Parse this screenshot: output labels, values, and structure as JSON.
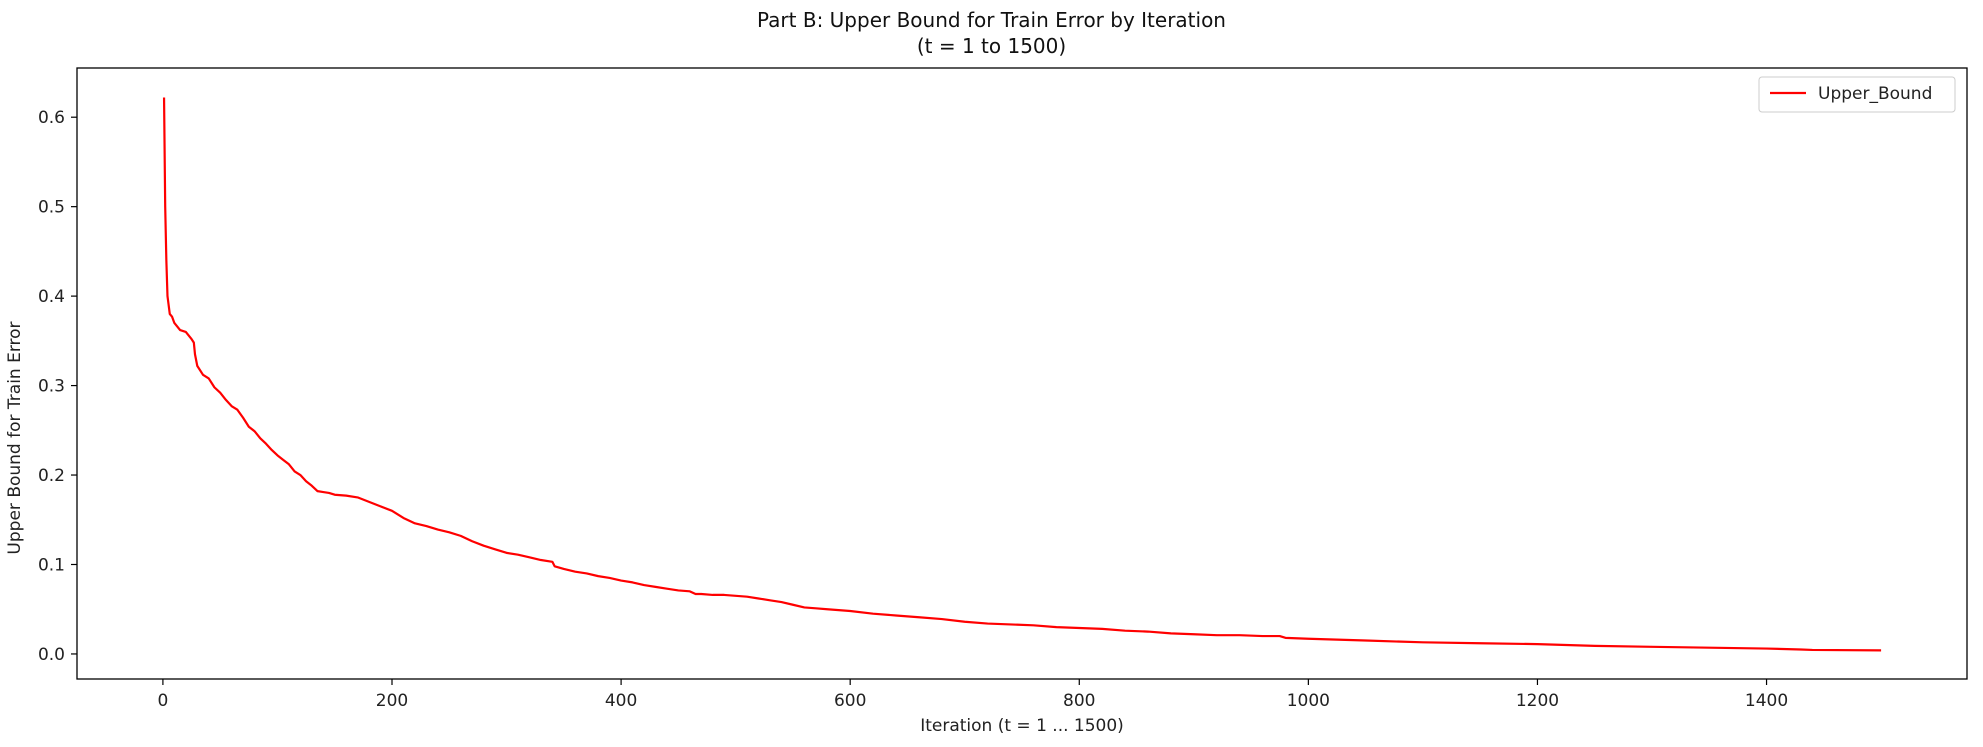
{
  "chart_data": {
    "type": "line",
    "title": "Part B: Upper Bound for Train Error by Iteration",
    "subtitle": "(t = 1 to 1500)",
    "xlabel": "Iteration (t = 1 ... 1500)",
    "ylabel": "Upper Bound for Train Error",
    "xlim": [
      -75,
      1575
    ],
    "ylim": [
      -0.028,
      0.655
    ],
    "xticks": [
      0,
      200,
      400,
      600,
      800,
      1000,
      1200,
      1400
    ],
    "xtick_labels": [
      "0",
      "200",
      "400",
      "600",
      "800",
      "1000",
      "1200",
      "1400"
    ],
    "yticks": [
      0.0,
      0.1,
      0.2,
      0.3,
      0.4,
      0.5,
      0.6
    ],
    "ytick_labels": [
      "0.0",
      "0.1",
      "0.2",
      "0.3",
      "0.4",
      "0.5",
      "0.6"
    ],
    "grid": false,
    "legend_position": "top-right",
    "series": [
      {
        "name": "Upper_Bound",
        "color": "#ff0000",
        "x": [
          1,
          2,
          3,
          4,
          6,
          8,
          10,
          15,
          20,
          25,
          27,
          28,
          30,
          35,
          40,
          45,
          50,
          55,
          60,
          65,
          70,
          75,
          80,
          85,
          90,
          95,
          100,
          105,
          110,
          115,
          120,
          125,
          130,
          135,
          140,
          145,
          150,
          160,
          170,
          180,
          190,
          200,
          210,
          220,
          230,
          240,
          250,
          260,
          270,
          280,
          290,
          300,
          310,
          320,
          330,
          340,
          342,
          350,
          360,
          370,
          380,
          390,
          400,
          410,
          420,
          430,
          440,
          450,
          460,
          465,
          470,
          480,
          490,
          500,
          510,
          520,
          530,
          540,
          550,
          560,
          570,
          580,
          600,
          620,
          640,
          660,
          680,
          700,
          720,
          740,
          760,
          780,
          800,
          820,
          840,
          860,
          880,
          900,
          920,
          940,
          960,
          975,
          980,
          1000,
          1050,
          1100,
          1150,
          1200,
          1250,
          1300,
          1350,
          1400,
          1430,
          1440,
          1500
        ],
        "y": [
          0.622,
          0.5,
          0.44,
          0.4,
          0.38,
          0.377,
          0.37,
          0.362,
          0.36,
          0.352,
          0.348,
          0.335,
          0.322,
          0.312,
          0.308,
          0.298,
          0.292,
          0.284,
          0.277,
          0.273,
          0.264,
          0.254,
          0.249,
          0.241,
          0.235,
          0.228,
          0.222,
          0.217,
          0.212,
          0.204,
          0.2,
          0.193,
          0.188,
          0.182,
          0.181,
          0.18,
          0.178,
          0.177,
          0.175,
          0.17,
          0.165,
          0.16,
          0.152,
          0.146,
          0.143,
          0.139,
          0.136,
          0.132,
          0.126,
          0.121,
          0.117,
          0.113,
          0.111,
          0.108,
          0.105,
          0.103,
          0.098,
          0.095,
          0.092,
          0.09,
          0.087,
          0.085,
          0.082,
          0.08,
          0.077,
          0.075,
          0.073,
          0.071,
          0.07,
          0.067,
          0.067,
          0.066,
          0.066,
          0.065,
          0.064,
          0.062,
          0.06,
          0.058,
          0.055,
          0.052,
          0.051,
          0.05,
          0.048,
          0.045,
          0.043,
          0.041,
          0.039,
          0.036,
          0.034,
          0.033,
          0.032,
          0.03,
          0.029,
          0.028,
          0.026,
          0.025,
          0.023,
          0.022,
          0.021,
          0.021,
          0.02,
          0.02,
          0.018,
          0.017,
          0.015,
          0.013,
          0.012,
          0.011,
          0.009,
          0.008,
          0.007,
          0.006,
          0.005,
          0.0045,
          0.004
        ]
      }
    ]
  }
}
